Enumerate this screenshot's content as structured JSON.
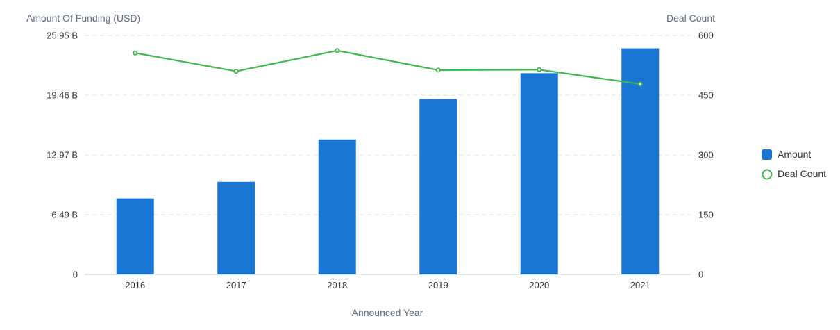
{
  "chart_data": {
    "type": "bar",
    "categories": [
      "2016",
      "2017",
      "2018",
      "2019",
      "2020",
      "2021"
    ],
    "series": [
      {
        "name": "Amount",
        "type": "bar",
        "axis": "left",
        "color": "#1976d2",
        "values": [
          8.25,
          10.05,
          14.65,
          19.05,
          21.85,
          24.55
        ]
      },
      {
        "name": "Deal Count",
        "type": "line",
        "axis": "right",
        "color": "#3cb94a",
        "values": [
          556,
          510,
          562,
          513,
          514,
          478
        ]
      }
    ],
    "ylabel": "Amount Of Funding (USD)",
    "y2label": "Deal Count",
    "xlabel": "Announced Year",
    "ylim": [
      0,
      25.95
    ],
    "y2lim": [
      0,
      600
    ],
    "y_ticks": [
      "0",
      "6.49 B",
      "12.97 B",
      "19.46 B",
      "25.95 B"
    ],
    "y2_ticks": [
      "0",
      "150",
      "300",
      "450",
      "600"
    ],
    "grid": true,
    "legend": "right"
  }
}
